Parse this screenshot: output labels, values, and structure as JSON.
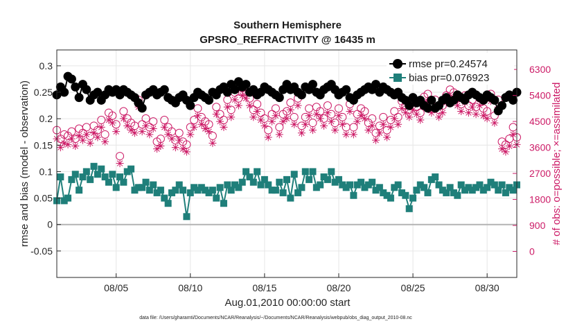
{
  "chart_data": {
    "type": "line",
    "title": "Southern Hemisphere",
    "subtitle": "GPSRO_REFRACTIVITY @ 16435 m",
    "xlabel": "Aug.01,2010 00:00:00 start",
    "ylabel": "rmse and bias (model - observation)",
    "y2label": "# of obs: o=possible; ×=assimilated",
    "xlim": [
      1,
      32
    ],
    "ylim": [
      -0.1,
      0.33
    ],
    "y2lim": [
      -900,
      6975
    ],
    "x_ticks": [
      5,
      10,
      15,
      20,
      25,
      30
    ],
    "x_tick_labels": [
      "08/05",
      "08/10",
      "08/15",
      "08/20",
      "08/25",
      "08/30"
    ],
    "y_ticks": [
      -0.05,
      0,
      0.05,
      0.1,
      0.15,
      0.2,
      0.25,
      0.3
    ],
    "y_tick_labels": [
      "-0.05",
      "0",
      "0.05",
      "0.1",
      "0.15",
      "0.2",
      "0.25",
      "0.3"
    ],
    "y2_ticks": [
      0,
      900,
      1800,
      2700,
      3600,
      4500,
      5400,
      6300
    ],
    "y2_tick_labels": [
      "0",
      "900",
      "1800",
      "2700",
      "3600",
      "4500",
      "5400",
      "6300"
    ],
    "x_start": 1.0,
    "x_step": 0.25,
    "legend": [
      {
        "label": "rmse pr=0.24574",
        "marker": "circle",
        "color": "#000000"
      },
      {
        "label": "bias pr=0.076923",
        "marker": "square",
        "color": "#1f7f7a"
      }
    ],
    "series": [
      {
        "name": "rmse",
        "color": "#000000",
        "values": [
          0.245,
          0.26,
          0.25,
          0.28,
          0.275,
          0.26,
          0.24,
          0.265,
          0.255,
          0.235,
          0.245,
          0.25,
          0.235,
          0.245,
          0.255,
          0.25,
          0.255,
          0.245,
          0.255,
          0.25,
          0.245,
          0.24,
          0.23,
          0.22,
          0.245,
          0.25,
          0.255,
          0.245,
          0.25,
          0.255,
          0.24,
          0.235,
          0.23,
          0.24,
          0.245,
          0.235,
          0.225,
          0.24,
          0.25,
          0.245,
          0.24,
          0.235,
          0.25,
          0.245,
          0.255,
          0.26,
          0.25,
          0.265,
          0.255,
          0.27,
          0.26,
          0.265,
          0.25,
          0.255,
          0.245,
          0.25,
          0.26,
          0.255,
          0.25,
          0.245,
          0.24,
          0.255,
          0.265,
          0.255,
          0.26,
          0.25,
          0.245,
          0.26,
          0.255,
          0.265,
          0.25,
          0.245,
          0.255,
          0.26,
          0.265,
          0.255,
          0.245,
          0.25,
          0.255,
          0.24,
          0.235,
          0.245,
          0.25,
          0.255,
          0.26,
          0.255,
          0.265,
          0.25,
          0.26,
          0.255,
          0.25,
          0.245,
          0.25,
          0.24,
          0.235,
          0.225,
          0.24,
          0.23,
          0.235,
          0.225,
          0.22,
          0.235,
          0.22,
          0.225,
          0.235,
          0.24,
          0.23,
          0.235,
          0.245,
          0.24,
          0.235,
          0.245,
          0.25,
          0.245,
          0.24,
          0.235,
          0.245,
          0.24,
          0.235,
          0.215,
          0.225,
          0.24,
          0.245,
          0.235,
          0.25,
          0.255,
          0.245,
          0.25,
          0.245,
          0.25,
          0.255,
          0.235,
          0.24,
          0.24,
          0.245,
          0.25,
          0.24,
          0.245,
          0.23,
          0.225,
          0.235,
          0.24,
          0.235,
          0.245,
          0.24,
          0.235,
          0.245,
          0.25,
          0.24,
          0.25,
          0.255,
          0.245,
          0.24,
          0.25,
          0.245,
          0.235,
          0.24,
          0.235,
          0.225,
          0.24,
          0.245,
          0.25,
          0.24,
          0.235,
          0.245,
          0.24,
          0.235,
          0.245,
          0.25,
          0.24,
          0.235,
          0.245,
          0.24,
          0.235,
          0.245,
          0.25,
          0.245,
          0.24,
          0.235,
          0.245,
          0.24,
          0.235,
          0.245,
          0.25,
          0.245,
          0.24,
          0.235,
          0.245,
          0.25,
          0.245,
          0.24,
          0.235,
          0.245,
          0.24,
          0.235,
          0.245,
          0.25,
          0.245,
          0.24,
          0.245,
          0.25,
          0.24,
          0.245,
          0.25,
          0.245,
          0.24,
          0.235,
          0.245,
          0.24,
          0.245,
          0.25,
          0.255,
          0.245,
          0.24,
          0.235,
          0.245,
          0.24,
          0.25,
          0.245,
          0.24,
          0.245,
          0.25,
          0.245,
          0.24,
          0.235,
          0.24,
          0.245,
          0.25,
          0.24,
          0.235,
          0.245,
          0.24,
          0.235,
          0.24,
          0.245,
          0.25,
          0.245,
          0.24,
          0.235,
          0.24,
          0.245,
          0.25,
          0.24,
          0.245,
          0.25,
          0.24,
          0.235,
          0.24,
          0.245,
          0.25,
          0.24,
          0.245,
          0.24,
          0.235,
          0.24,
          0.235
        ]
      },
      {
        "name": "bias",
        "color": "#1f7f7a",
        "values": [
          0.045,
          0.09,
          0.045,
          0.05,
          0.085,
          0.095,
          0.065,
          0.09,
          0.1,
          0.085,
          0.11,
          0.095,
          0.105,
          0.09,
          0.08,
          0.095,
          0.07,
          0.09,
          0.08,
          0.1,
          0.105,
          0.065,
          0.07,
          0.07,
          0.08,
          0.065,
          0.075,
          0.06,
          0.065,
          0.05,
          0.04,
          0.06,
          0.065,
          0.075,
          0.065,
          0.015,
          0.06,
          0.07,
          0.065,
          0.07,
          0.065,
          0.06,
          0.065,
          0.05,
          0.07,
          0.04,
          0.075,
          0.065,
          0.075,
          0.07,
          0.08,
          0.1,
          0.09,
          0.08,
          0.1,
          0.075,
          0.085,
          0.075,
          0.065,
          0.065,
          0.08,
          0.06,
          0.085,
          0.05,
          0.095,
          0.06,
          0.07,
          0.1,
          0.085,
          0.1,
          0.07,
          0.075,
          0.09,
          0.085,
          0.1,
          0.08,
          0.085,
          0.075,
          0.07,
          0.075,
          0.055,
          0.075,
          0.08,
          0.07,
          0.075,
          0.08,
          0.065,
          0.07,
          0.06,
          0.055,
          0.05,
          0.07,
          0.075,
          0.06,
          0.055,
          0.03,
          0.05,
          0.065,
          0.075,
          0.07,
          0.06,
          0.085,
          0.09,
          0.075,
          0.065,
          0.06,
          0.07,
          0.06,
          0.055,
          0.075,
          0.065,
          0.07,
          0.065,
          0.07,
          0.075,
          0.065,
          0.07,
          0.08,
          0.075,
          0.065,
          0.075,
          0.06,
          0.07,
          0.065,
          0.075,
          0.07,
          0.065,
          0.07,
          0.075,
          0.065,
          0.07,
          0.075,
          0.08,
          0.07,
          0.075,
          0.085,
          0.09,
          0.095,
          0.1,
          0.11,
          0.12,
          0.105,
          0.095,
          0.1,
          0.085,
          0.08,
          0.075,
          0.09,
          0.085,
          0.08,
          0.09,
          0.1,
          0.095,
          0.1,
          0.105,
          0.095,
          0.085,
          0.095,
          0.09,
          0.085,
          0.08,
          0.045,
          0.05,
          0.11,
          0.04,
          0.045,
          0.06,
          0.055,
          0.065,
          0.085,
          0.08,
          0.07,
          0.065,
          0.075,
          0.07,
          0.065,
          0.07,
          0.075,
          0.07,
          0.065,
          0.07,
          0.075,
          0.07,
          0.065,
          0.07,
          0.075,
          0.07,
          0.065,
          0.07,
          0.075,
          0.07,
          0.065,
          0.07,
          0.075,
          0.07,
          0.065,
          0.07,
          0.075,
          0.07,
          0.065,
          0.07,
          0.075,
          0.07,
          0.065,
          0.07,
          0.075,
          0.07,
          0.065,
          0.07,
          0.075,
          0.07,
          0.065,
          0.07,
          0.075,
          0.07,
          0.065,
          0.07,
          0.075,
          0.07,
          0.065,
          0.07,
          0.075,
          0.07,
          0.065,
          0.07,
          0.075,
          0.07,
          0.065,
          0.07,
          0.075,
          0.07,
          0.065,
          0.07,
          0.075,
          0.07,
          0.065,
          0.07,
          0.075,
          0.07,
          0.065,
          0.07,
          0.075,
          0.07,
          0.065,
          0.07,
          0.075,
          0.07,
          0.065,
          0.07,
          0.075,
          0.07,
          0.065
        ]
      },
      {
        "name": "obs_possible",
        "color": "#cc1a66",
        "axis": "right",
        "values": [
          4200,
          3900,
          4050,
          4000,
          4150,
          3900,
          4250,
          4100,
          4300,
          4000,
          4350,
          4200,
          4550,
          4050,
          4800,
          4700,
          4400,
          3300,
          4850,
          4600,
          4450,
          4350,
          5250,
          4400,
          4600,
          4300,
          4500,
          3800,
          3900,
          4550,
          4300,
          4150,
          3850,
          4100,
          3800,
          3700,
          4300,
          4550,
          4950,
          4650,
          4500,
          4400,
          4000,
          5000,
          4750,
          4550,
          5250,
          4900,
          5500,
          5300,
          5650,
          5550,
          5300,
          4900,
          5100,
          4800,
          4600,
          4200,
          4750,
          4950,
          4300,
          4750,
          4850,
          5150,
          4650,
          5300,
          4350,
          4650,
          4950,
          4450,
          5000,
          4850,
          4600,
          5050,
          4750,
          4450,
          4950,
          4650,
          4300,
          5100,
          4300,
          4750,
          4950,
          4850,
          4450,
          4600,
          4100,
          4350,
          4650,
          4200,
          4550,
          4850,
          4650,
          5200,
          5050,
          4900,
          5150,
          5000,
          4800,
          5350,
          5450,
          5050,
          5250,
          4900,
          5050,
          5400,
          5600,
          5500,
          5300,
          5100,
          5400,
          5050,
          5250,
          5000,
          5300,
          4950,
          4850,
          5450,
          4700,
          5250,
          3800,
          3700,
          3900,
          4300,
          3950,
          3800,
          4100,
          4350,
          4550,
          4300,
          4000,
          4500,
          4650,
          4100,
          4250,
          4450,
          4300,
          4700,
          4350,
          4300,
          3700,
          3500,
          4050,
          4500,
          4050,
          3800,
          2800,
          4700,
          4500,
          3000,
          4050,
          4300,
          4450,
          4600,
          4150,
          4600,
          4800,
          4450,
          4900,
          4650,
          4950,
          4800,
          4350,
          4700,
          4500,
          4250,
          4650,
          4400,
          4700,
          4500,
          4600,
          4800,
          4400,
          4750,
          4600,
          4500,
          4350,
          4700,
          4800,
          4500,
          4650,
          4750,
          4600,
          4800,
          4500,
          4650,
          4400,
          4700,
          4750,
          4500,
          4650,
          4750,
          4600,
          4800,
          4500,
          4650,
          4750,
          4600,
          4800,
          4500,
          4650,
          4400,
          4750,
          4500,
          4650,
          4750,
          4600,
          4800,
          4500,
          4650,
          4750,
          4600,
          4800,
          4500,
          4650,
          4750,
          4600,
          4800,
          4500,
          4650,
          4400,
          4750,
          4500,
          4650,
          4750,
          4600,
          4800,
          4500,
          4650,
          4750,
          4600,
          4800,
          4500,
          4650,
          4750,
          4600,
          4800,
          4500,
          4650,
          4400,
          4750,
          4500,
          4650,
          4750,
          4600,
          4800,
          4500,
          4650,
          4750,
          4600,
          4800,
          4500,
          4650,
          4750,
          4600,
          4800,
          4500,
          4650,
          4400,
          4750,
          4500,
          4650,
          4750,
          4600,
          0
        ]
      },
      {
        "name": "obs_assimilated",
        "color": "#cc1a66",
        "axis": "right",
        "values": [
          3900,
          3600,
          3750,
          3700,
          3900,
          3650,
          4000,
          3850,
          4050,
          3750,
          4100,
          3950,
          4300,
          3800,
          4550,
          4450,
          4150,
          3050,
          4600,
          4350,
          4200,
          4100,
          5000,
          4150,
          4350,
          4050,
          4250,
          3550,
          3650,
          4300,
          4050,
          3900,
          3600,
          3850,
          3550,
          3450,
          4050,
          4300,
          4700,
          4400,
          4250,
          4150,
          3750,
          4750,
          4500,
          4300,
          5000,
          4650,
          5250,
          5050,
          5400,
          5300,
          5050,
          4650,
          4850,
          4550,
          4350,
          3950,
          4500,
          4700,
          4050,
          4500,
          4600,
          4900,
          4400,
          5050,
          4100,
          4400,
          4700,
          4200,
          4750,
          4600,
          4350,
          4800,
          4500,
          4200,
          4700,
          4400,
          4050,
          4850,
          4050,
          4500,
          4700,
          4600,
          4200,
          4350,
          3850,
          4100,
          4400,
          3950,
          4300,
          4600,
          4400,
          4950,
          4800,
          4650,
          4900,
          4750,
          4550,
          5100,
          5200,
          4800,
          5000,
          4650,
          4800,
          5150,
          5350,
          5250,
          5050,
          4850,
          5150,
          4800,
          5000,
          4750,
          5050,
          4700,
          4600,
          5200,
          4450,
          5000,
          3550,
          3450,
          3650,
          4050,
          3700,
          3550,
          3850,
          4100,
          4300,
          4050,
          3750,
          4250,
          4400,
          3850,
          4000,
          4200,
          4050,
          4450,
          4100,
          4050,
          3450,
          3250,
          3800,
          4250,
          3800,
          3550,
          2650,
          4450,
          4250,
          2850,
          3800,
          4050,
          4200,
          4350,
          3900,
          4350,
          4550,
          4200,
          4650,
          4400,
          4700,
          4550,
          4100,
          4450,
          4250,
          4000,
          4400,
          4150,
          4450,
          4250,
          4350,
          4550,
          4150,
          4500,
          4350,
          4250,
          4100,
          4450,
          4550,
          4250,
          4400,
          4500,
          4350,
          4550,
          4250,
          4400,
          4150,
          4450,
          4500,
          4250,
          4400,
          4500,
          4350,
          4550,
          4250,
          4400,
          4500,
          4350,
          4550,
          4250,
          4400,
          4150,
          4500,
          4250,
          4400,
          4500,
          4350,
          4550,
          4250,
          4400,
          4500,
          4350,
          4550,
          4250,
          4400,
          4500,
          4350,
          4550,
          4250,
          4400,
          4150,
          4500,
          4250,
          4400,
          4500,
          4350,
          4550,
          4250,
          4400,
          4500,
          4350,
          4550,
          4250,
          4400,
          4500,
          4350,
          4550,
          4250,
          4400,
          4150,
          4500,
          4250,
          4400,
          4500,
          4350,
          4550,
          4250,
          4400,
          4500,
          4350,
          4550,
          4250,
          4400,
          4500,
          4350,
          4550,
          4250,
          4400,
          4150,
          4500,
          4250,
          4400,
          4500,
          4350,
          0
        ]
      }
    ]
  },
  "footer": {
    "data_file": "data file: /Users/gharamti/Documents/NCAR/Reanalysis/~/Documents/NCAR/Reanalysis/webpub/obs_diag_output_2010-08.nc"
  },
  "colors": {
    "rmse": "#000000",
    "bias": "#1f7f7a",
    "obs": "#cc1a66",
    "zero_line": "#b3b3b3"
  }
}
